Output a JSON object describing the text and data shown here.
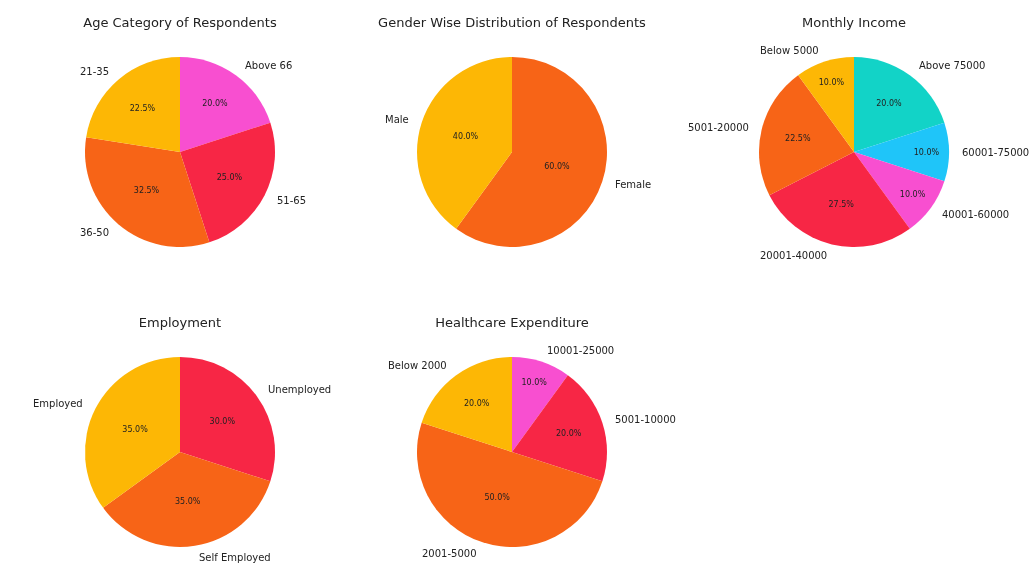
{
  "chart_data": [
    {
      "type": "pie",
      "title": "Age Category of Respondents",
      "categories": [
        "Above 66",
        "51-65",
        "36-50",
        "21-35"
      ],
      "values": [
        20,
        25,
        32.5,
        22.5
      ],
      "colors": [
        "#f84fd0",
        "#f72645",
        "#f76417",
        "#fdb705"
      ],
      "value_labels": [
        "20.0%",
        "25.0%",
        "32.5%",
        "22.5%"
      ]
    },
    {
      "type": "pie",
      "title": "Gender Wise Distribution of Respondents",
      "categories": [
        "Female",
        "Male"
      ],
      "values": [
        60,
        40
      ],
      "colors": [
        "#f76417",
        "#fdb705"
      ],
      "value_labels": [
        "60.0%",
        "40.0%"
      ]
    },
    {
      "type": "pie",
      "title": "Monthly Income",
      "categories": [
        "Above 75000",
        "60001-75000",
        "40001-60000",
        "20001-40000",
        "5001-20000",
        "Below 5000"
      ],
      "values": [
        20,
        10,
        10,
        27.5,
        22.5,
        10
      ],
      "colors": [
        "#12d3c7",
        "#1fc5f9",
        "#f84fd0",
        "#f72645",
        "#f76417",
        "#fdb705"
      ],
      "value_labels": [
        "20.0%",
        "10.0%",
        "10.0%",
        "27.5%",
        "22.5%",
        "10.0%"
      ]
    },
    {
      "type": "pie",
      "title": "Employment",
      "categories": [
        "Unemployed",
        "Self Employed",
        "Employed"
      ],
      "values": [
        30,
        35,
        35
      ],
      "colors": [
        "#f72645",
        "#f76417",
        "#fdb705"
      ],
      "value_labels": [
        "30.0%",
        "35.0%",
        "35.0%"
      ]
    },
    {
      "type": "pie",
      "title": "Healthcare Expenditure",
      "categories": [
        "10001-25000",
        "5001-10000",
        "2001-5000",
        "Below 2000"
      ],
      "values": [
        10,
        20,
        50,
        20
      ],
      "colors": [
        "#f84fd0",
        "#f72645",
        "#f76417",
        "#fdb705"
      ],
      "value_labels": [
        "10.0%",
        "20.0%",
        "50.0%",
        "20.0%"
      ]
    }
  ]
}
